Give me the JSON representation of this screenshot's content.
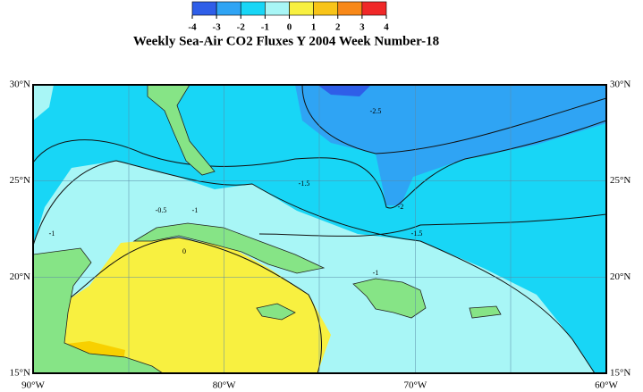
{
  "title": "Weekly Sea-Air CO2 Fluxes Y 2004 Week Number-18",
  "colorbar": {
    "ticks": [
      -4,
      -3,
      -2,
      -1,
      0,
      1,
      2,
      3,
      4
    ],
    "colors": [
      "#2f5ee8",
      "#2fa4f4",
      "#18d6f6",
      "#a8f6f6",
      "#f8f040",
      "#f8c418",
      "#f88818",
      "#f02828"
    ]
  },
  "xlim": [
    -90,
    -60
  ],
  "ylim": [
    15,
    30
  ],
  "xticks": [
    {
      "value": -90,
      "label": "90°W"
    },
    {
      "value": -80,
      "label": "80°W"
    },
    {
      "value": -70,
      "label": "70°W"
    },
    {
      "value": -60,
      "label": "60°W"
    }
  ],
  "yticks": [
    {
      "value": 15,
      "label": "15°N"
    },
    {
      "value": 20,
      "label": "20°N"
    },
    {
      "value": 25,
      "label": "25°N"
    },
    {
      "value": 30,
      "label": "30°N"
    }
  ],
  "contour_labels": [
    -2.5,
    -2,
    -1.5,
    -1,
    -0.5,
    -1,
    0,
    -1,
    -1.5
  ]
}
